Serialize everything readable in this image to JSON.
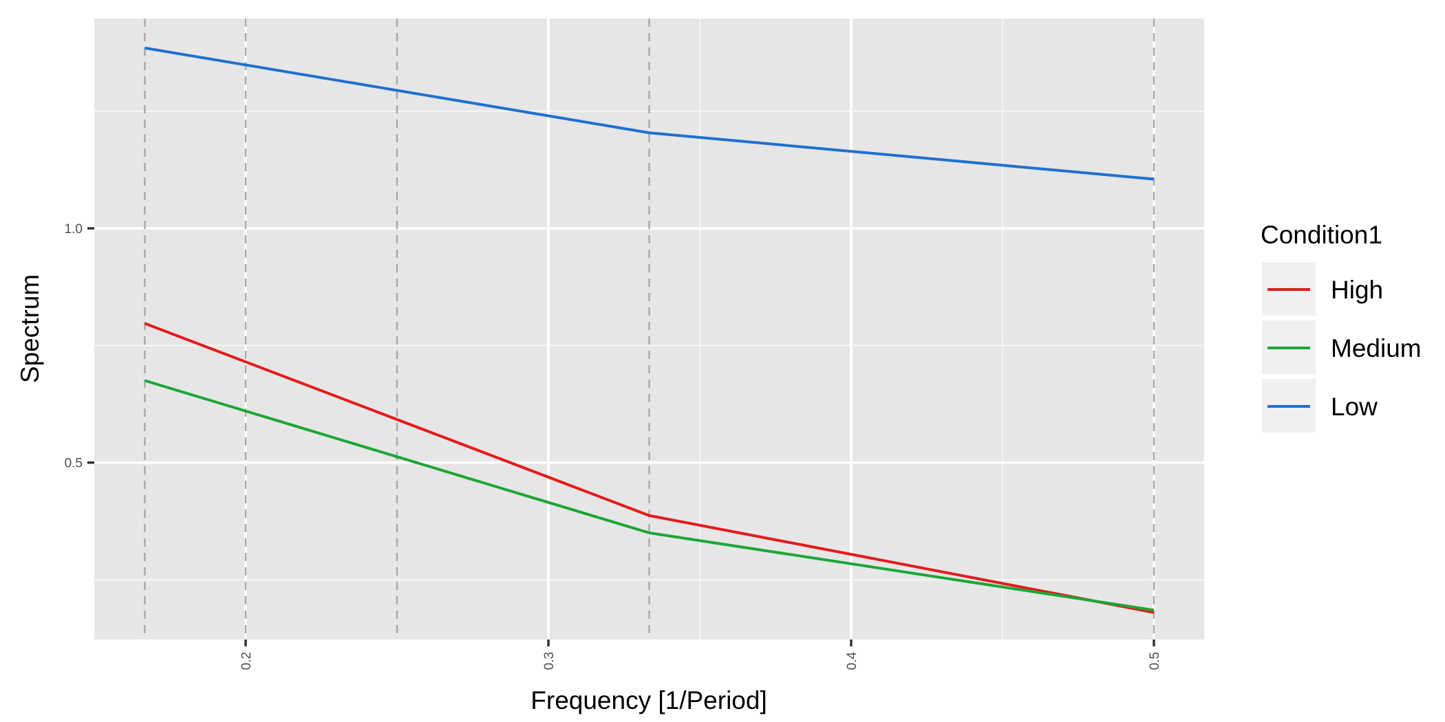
{
  "chart_data": {
    "type": "line",
    "title": "",
    "xlabel": "Frequency [1/Period]",
    "ylabel": "Spectrum",
    "xlim": [
      0.15,
      0.5166
    ],
    "ylim": [
      0.1224,
      1.4478
    ],
    "x_ticks": [
      0.2,
      0.3,
      0.4,
      0.5
    ],
    "x_tick_labels": [
      "0.2",
      "0.3",
      "0.4",
      "0.5"
    ],
    "y_ticks": [
      0.5,
      1.0
    ],
    "y_tick_labels": [
      "0.5",
      "1.0"
    ],
    "x_major_grid": [
      0.2,
      0.3,
      0.4,
      0.5
    ],
    "x_minor_grid": [
      0.35,
      0.45
    ],
    "y_major_grid": [
      0.5,
      1.0
    ],
    "y_minor_grid": [
      0.25,
      0.75,
      1.25
    ],
    "reference_lines_x": [
      0.1667,
      0.2,
      0.25,
      0.3333,
      0.5
    ],
    "grid": true,
    "legend_title": "Condition1",
    "legend_position": "right",
    "x": [
      0.1667,
      0.3333,
      0.5
    ],
    "series": [
      {
        "name": "High",
        "color": "#e41a1c",
        "values": [
          0.797,
          0.387,
          0.18
        ]
      },
      {
        "name": "Medium",
        "color": "#1aa635",
        "values": [
          0.675,
          0.35,
          0.185
        ]
      },
      {
        "name": "Low",
        "color": "#1f6fd1",
        "values": [
          1.385,
          1.204,
          1.105
        ]
      }
    ]
  }
}
